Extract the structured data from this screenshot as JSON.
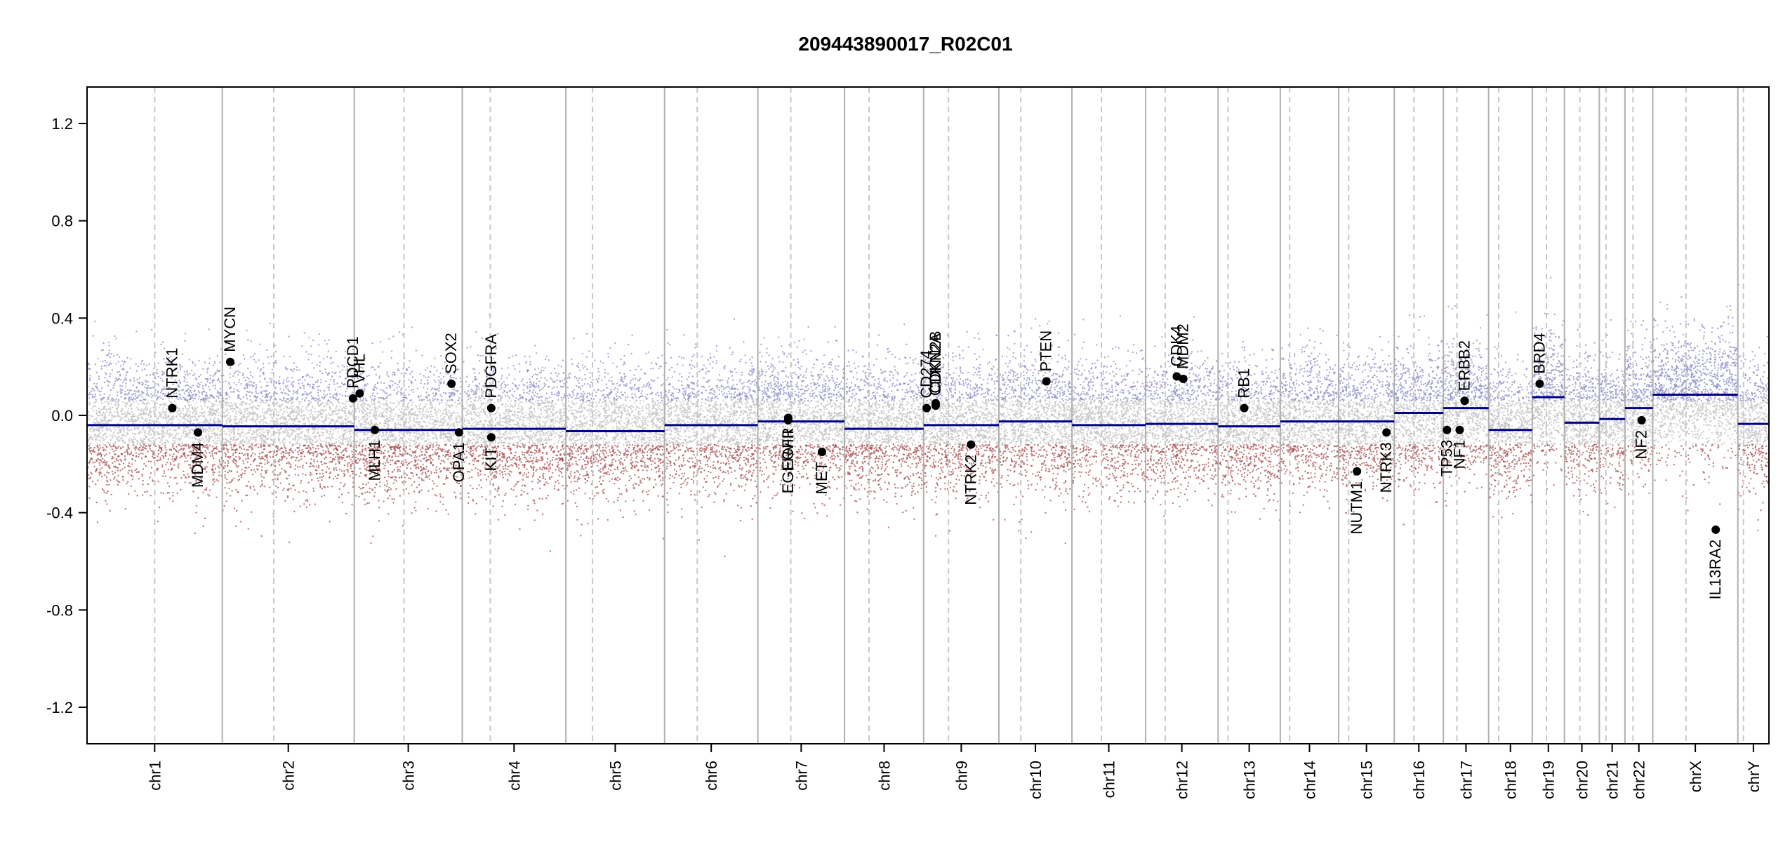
{
  "chart_data": {
    "type": "scatter",
    "title": "209443890017_R02C01",
    "xlabel": "",
    "ylabel": "",
    "ylim": [
      -1.35,
      1.35
    ],
    "y_ticks": [
      -1.2,
      -0.8,
      -0.4,
      0.0,
      0.4,
      0.8,
      1.2
    ],
    "y_tick_labels": [
      "-1.2",
      "-0.8",
      "-0.4",
      "0.0",
      "0.4",
      "0.8",
      "1.2"
    ],
    "chromosomes": [
      {
        "name": "chr1",
        "length": 248,
        "centromere": 0.5,
        "segments": [
          {
            "from": 0,
            "to": 1,
            "value": -0.04
          }
        ]
      },
      {
        "name": "chr2",
        "length": 242,
        "centromere": 0.39,
        "segments": [
          {
            "from": 0,
            "to": 1,
            "value": -0.045
          }
        ]
      },
      {
        "name": "chr3",
        "length": 198,
        "centromere": 0.46,
        "segments": [
          {
            "from": 0,
            "to": 1,
            "value": -0.06
          }
        ]
      },
      {
        "name": "chr4",
        "length": 190,
        "centromere": 0.27,
        "segments": [
          {
            "from": 0,
            "to": 1,
            "value": -0.055
          }
        ]
      },
      {
        "name": "chr5",
        "length": 181,
        "centromere": 0.27,
        "segments": [
          {
            "from": 0,
            "to": 1,
            "value": -0.065
          }
        ]
      },
      {
        "name": "chr6",
        "length": 171,
        "centromere": 0.35,
        "segments": [
          {
            "from": 0,
            "to": 1,
            "value": -0.04
          }
        ]
      },
      {
        "name": "chr7",
        "length": 159,
        "centromere": 0.38,
        "segments": [
          {
            "from": 0,
            "to": 1,
            "value": -0.025
          }
        ]
      },
      {
        "name": "chr8",
        "length": 145,
        "centromere": 0.31,
        "segments": [
          {
            "from": 0,
            "to": 1,
            "value": -0.055
          }
        ]
      },
      {
        "name": "chr9",
        "length": 138,
        "centromere": 0.33,
        "segments": [
          {
            "from": 0,
            "to": 1,
            "value": -0.04
          }
        ]
      },
      {
        "name": "chr10",
        "length": 134,
        "centromere": 0.3,
        "segments": [
          {
            "from": 0,
            "to": 1,
            "value": -0.025
          }
        ]
      },
      {
        "name": "chr11",
        "length": 135,
        "centromere": 0.4,
        "segments": [
          {
            "from": 0,
            "to": 1,
            "value": -0.04
          }
        ]
      },
      {
        "name": "chr12",
        "length": 133,
        "centromere": 0.27,
        "segments": [
          {
            "from": 0,
            "to": 1,
            "value": -0.035
          }
        ]
      },
      {
        "name": "chr13",
        "length": 114,
        "centromere": 0.16,
        "segments": [
          {
            "from": 0,
            "to": 1,
            "value": -0.045
          }
        ]
      },
      {
        "name": "chr14",
        "length": 107,
        "centromere": 0.16,
        "segments": [
          {
            "from": 0,
            "to": 1,
            "value": -0.025
          }
        ]
      },
      {
        "name": "chr15",
        "length": 102,
        "centromere": 0.18,
        "segments": [
          {
            "from": 0,
            "to": 1,
            "value": -0.025
          }
        ]
      },
      {
        "name": "chr16",
        "length": 90,
        "centromere": 0.4,
        "segments": [
          {
            "from": 0,
            "to": 1,
            "value": 0.01
          }
        ]
      },
      {
        "name": "chr17",
        "length": 83,
        "centromere": 0.3,
        "segments": [
          {
            "from": 0,
            "to": 1,
            "value": 0.03
          }
        ]
      },
      {
        "name": "chr18",
        "length": 80,
        "centromere": 0.23,
        "segments": [
          {
            "from": 0,
            "to": 1,
            "value": -0.06
          }
        ]
      },
      {
        "name": "chr19",
        "length": 59,
        "centromere": 0.44,
        "segments": [
          {
            "from": 0,
            "to": 1,
            "value": 0.075
          }
        ]
      },
      {
        "name": "chr20",
        "length": 64,
        "centromere": 0.44,
        "segments": [
          {
            "from": 0,
            "to": 1,
            "value": -0.03
          }
        ]
      },
      {
        "name": "chr21",
        "length": 47,
        "centromere": 0.26,
        "segments": [
          {
            "from": 0,
            "to": 1,
            "value": -0.015
          }
        ]
      },
      {
        "name": "chr22",
        "length": 51,
        "centromere": 0.29,
        "segments": [
          {
            "from": 0,
            "to": 1,
            "value": 0.03
          }
        ]
      },
      {
        "name": "chrX",
        "length": 156,
        "centromere": 0.39,
        "segments": [
          {
            "from": 0,
            "to": 1,
            "value": 0.085
          }
        ]
      },
      {
        "name": "chrY",
        "length": 57,
        "centromere": 0.18,
        "segments": [
          {
            "from": 0,
            "to": 1,
            "value": -0.035
          }
        ]
      }
    ],
    "genes": [
      {
        "name": "NTRK1",
        "chr": "chr1",
        "pos": 0.63,
        "value": 0.03,
        "label_side": "above"
      },
      {
        "name": "MDM4",
        "chr": "chr1",
        "pos": 0.82,
        "value": -0.07,
        "label_side": "below"
      },
      {
        "name": "MYCN",
        "chr": "chr2",
        "pos": 0.06,
        "value": 0.22,
        "label_side": "above"
      },
      {
        "name": "PDCD1",
        "chr": "chr2",
        "pos": 0.99,
        "value": 0.07,
        "label_side": "above"
      },
      {
        "name": "VHL",
        "chr": "chr3",
        "pos": 0.05,
        "value": 0.09,
        "label_side": "above"
      },
      {
        "name": "MLH1",
        "chr": "chr3",
        "pos": 0.19,
        "value": -0.06,
        "label_side": "below"
      },
      {
        "name": "SOX2",
        "chr": "chr3",
        "pos": 0.9,
        "value": 0.13,
        "label_side": "above"
      },
      {
        "name": "OPA1",
        "chr": "chr3",
        "pos": 0.97,
        "value": -0.07,
        "label_side": "below"
      },
      {
        "name": "PDGFRA",
        "chr": "chr4",
        "pos": 0.28,
        "value": 0.03,
        "label_side": "above"
      },
      {
        "name": "KIT",
        "chr": "chr4",
        "pos": 0.28,
        "value": -0.09,
        "label_side": "below"
      },
      {
        "name": "EGFR",
        "chr": "chr7",
        "pos": 0.35,
        "value": -0.01,
        "label_side": "below"
      },
      {
        "name": "EGFRvIII",
        "chr": "chr7",
        "pos": 0.35,
        "value": -0.02,
        "label_side": "below"
      },
      {
        "name": "MET",
        "chr": "chr7",
        "pos": 0.74,
        "value": -0.15,
        "label_side": "below"
      },
      {
        "name": "CD274",
        "chr": "chr9",
        "pos": 0.04,
        "value": 0.03,
        "label_side": "above"
      },
      {
        "name": "CDKN2A",
        "chr": "chr9",
        "pos": 0.16,
        "value": 0.04,
        "label_side": "above"
      },
      {
        "name": "CDKN2B",
        "chr": "chr9",
        "pos": 0.16,
        "value": 0.05,
        "label_side": "above"
      },
      {
        "name": "NTRK2",
        "chr": "chr9",
        "pos": 0.63,
        "value": -0.12,
        "label_side": "below"
      },
      {
        "name": "PTEN",
        "chr": "chr10",
        "pos": 0.65,
        "value": 0.14,
        "label_side": "above"
      },
      {
        "name": "CDK4",
        "chr": "chr12",
        "pos": 0.43,
        "value": 0.16,
        "label_side": "above"
      },
      {
        "name": "MDM2",
        "chr": "chr12",
        "pos": 0.52,
        "value": 0.15,
        "label_side": "above"
      },
      {
        "name": "RB1",
        "chr": "chr13",
        "pos": 0.42,
        "value": 0.03,
        "label_side": "above"
      },
      {
        "name": "NUTM1",
        "chr": "chr15",
        "pos": 0.33,
        "value": -0.23,
        "label_side": "below"
      },
      {
        "name": "NTRK3",
        "chr": "chr15",
        "pos": 0.86,
        "value": -0.07,
        "label_side": "below"
      },
      {
        "name": "TP53",
        "chr": "chr17",
        "pos": 0.08,
        "value": -0.06,
        "label_side": "below"
      },
      {
        "name": "NF1",
        "chr": "chr17",
        "pos": 0.36,
        "value": -0.06,
        "label_side": "below"
      },
      {
        "name": "ERBB2",
        "chr": "chr17",
        "pos": 0.47,
        "value": 0.06,
        "label_side": "above"
      },
      {
        "name": "BRD4",
        "chr": "chr19",
        "pos": 0.23,
        "value": 0.13,
        "label_side": "above"
      },
      {
        "name": "NF2",
        "chr": "chr22",
        "pos": 0.6,
        "value": -0.02,
        "label_side": "below"
      },
      {
        "name": "IL13RA2",
        "chr": "chrX",
        "pos": 0.74,
        "value": -0.47,
        "label_side": "below"
      }
    ],
    "colors": {
      "gain": "#8c8cc8",
      "loss": "#a85050",
      "neutral": "#c0c0c0",
      "segment": "#00008b",
      "chrom_border": "#b0b0b0",
      "centromere": "#c8c8c8",
      "gene_point": "#000000"
    },
    "grid": false
  }
}
